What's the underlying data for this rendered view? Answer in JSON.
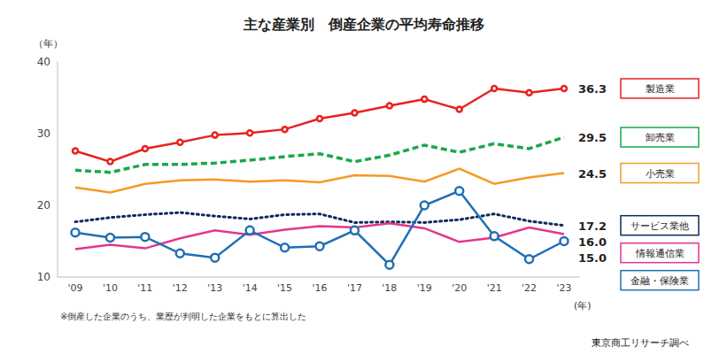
{
  "chart_data": {
    "type": "line",
    "title": "主な産業別　倒産企業の平均寿命推移",
    "ylabel": "（年）",
    "xlabel": "(年)",
    "note": "※倒産した企業のうち、業歴が判明した企業をもとに算出した",
    "source": "東京商工リサーチ調べ",
    "categories": [
      "'09",
      "'10",
      "'11",
      "'12",
      "'13",
      "'14",
      "'15",
      "'16",
      "'17",
      "'18",
      "'19",
      "'20",
      "'21",
      "'22",
      "'23"
    ],
    "ylim": [
      10,
      40
    ],
    "yticks": [
      10,
      20,
      30,
      40
    ],
    "grid": false,
    "legend": "right",
    "series": [
      {
        "name": "製造業",
        "color": "#e8211f",
        "marker": "circle",
        "line_style": "solid",
        "values": [
          27.6,
          26.1,
          27.9,
          28.8,
          29.8,
          30.1,
          30.6,
          32.1,
          32.9,
          33.9,
          34.8,
          33.4,
          36.3,
          35.7,
          36.3
        ],
        "value_labels": [
          null,
          null,
          null,
          null,
          null,
          null,
          null,
          null,
          null,
          null,
          null,
          null,
          null,
          null,
          "36.3"
        ]
      },
      {
        "name": "卸売業",
        "color": "#1aa84a",
        "marker": "none",
        "line_style": "dashed",
        "values": [
          24.9,
          24.6,
          25.7,
          25.7,
          25.9,
          26.3,
          26.8,
          27.2,
          26.1,
          27.0,
          28.4,
          27.4,
          28.6,
          27.9,
          29.5
        ],
        "value_labels": [
          null,
          null,
          null,
          null,
          null,
          null,
          null,
          null,
          null,
          null,
          null,
          null,
          null,
          null,
          "29.5"
        ]
      },
      {
        "name": "小売業",
        "color": "#f59a23",
        "marker": "none",
        "line_style": "solid",
        "values": [
          22.5,
          21.8,
          23.0,
          23.5,
          23.6,
          23.3,
          23.5,
          23.2,
          24.2,
          24.1,
          23.3,
          25.1,
          23.0,
          23.9,
          24.5
        ],
        "value_labels": [
          null,
          null,
          null,
          null,
          null,
          null,
          null,
          null,
          null,
          null,
          null,
          null,
          null,
          null,
          "24.5"
        ]
      },
      {
        "name": "サービス業他",
        "color": "#0d2a5c",
        "marker": "none",
        "line_style": "dotted",
        "values": [
          17.7,
          18.3,
          18.7,
          19.0,
          18.5,
          18.1,
          18.7,
          18.8,
          17.6,
          17.7,
          17.6,
          18.0,
          18.8,
          17.8,
          17.2
        ],
        "value_labels": [
          null,
          null,
          null,
          null,
          null,
          null,
          null,
          null,
          null,
          null,
          null,
          null,
          null,
          null,
          "17.2"
        ]
      },
      {
        "name": "情報通信業",
        "color": "#e4358f",
        "marker": "none",
        "line_style": "solid",
        "values": [
          13.9,
          14.5,
          14.0,
          15.4,
          16.5,
          15.9,
          16.6,
          17.1,
          16.9,
          17.5,
          16.8,
          14.9,
          15.5,
          16.9,
          16.0
        ],
        "value_labels": [
          null,
          null,
          null,
          null,
          null,
          null,
          null,
          null,
          null,
          null,
          null,
          null,
          null,
          null,
          "16.0"
        ]
      },
      {
        "name": "金融・保険業",
        "color": "#1f6fb5",
        "marker": "circle",
        "line_style": "solid",
        "values": [
          16.2,
          15.5,
          15.6,
          13.3,
          12.7,
          16.5,
          14.1,
          14.3,
          16.5,
          11.7,
          20.0,
          22.0,
          15.7,
          12.5,
          15.0
        ],
        "value_labels": [
          null,
          null,
          null,
          null,
          null,
          null,
          null,
          null,
          null,
          null,
          null,
          null,
          null,
          null,
          "15.0"
        ]
      }
    ]
  }
}
